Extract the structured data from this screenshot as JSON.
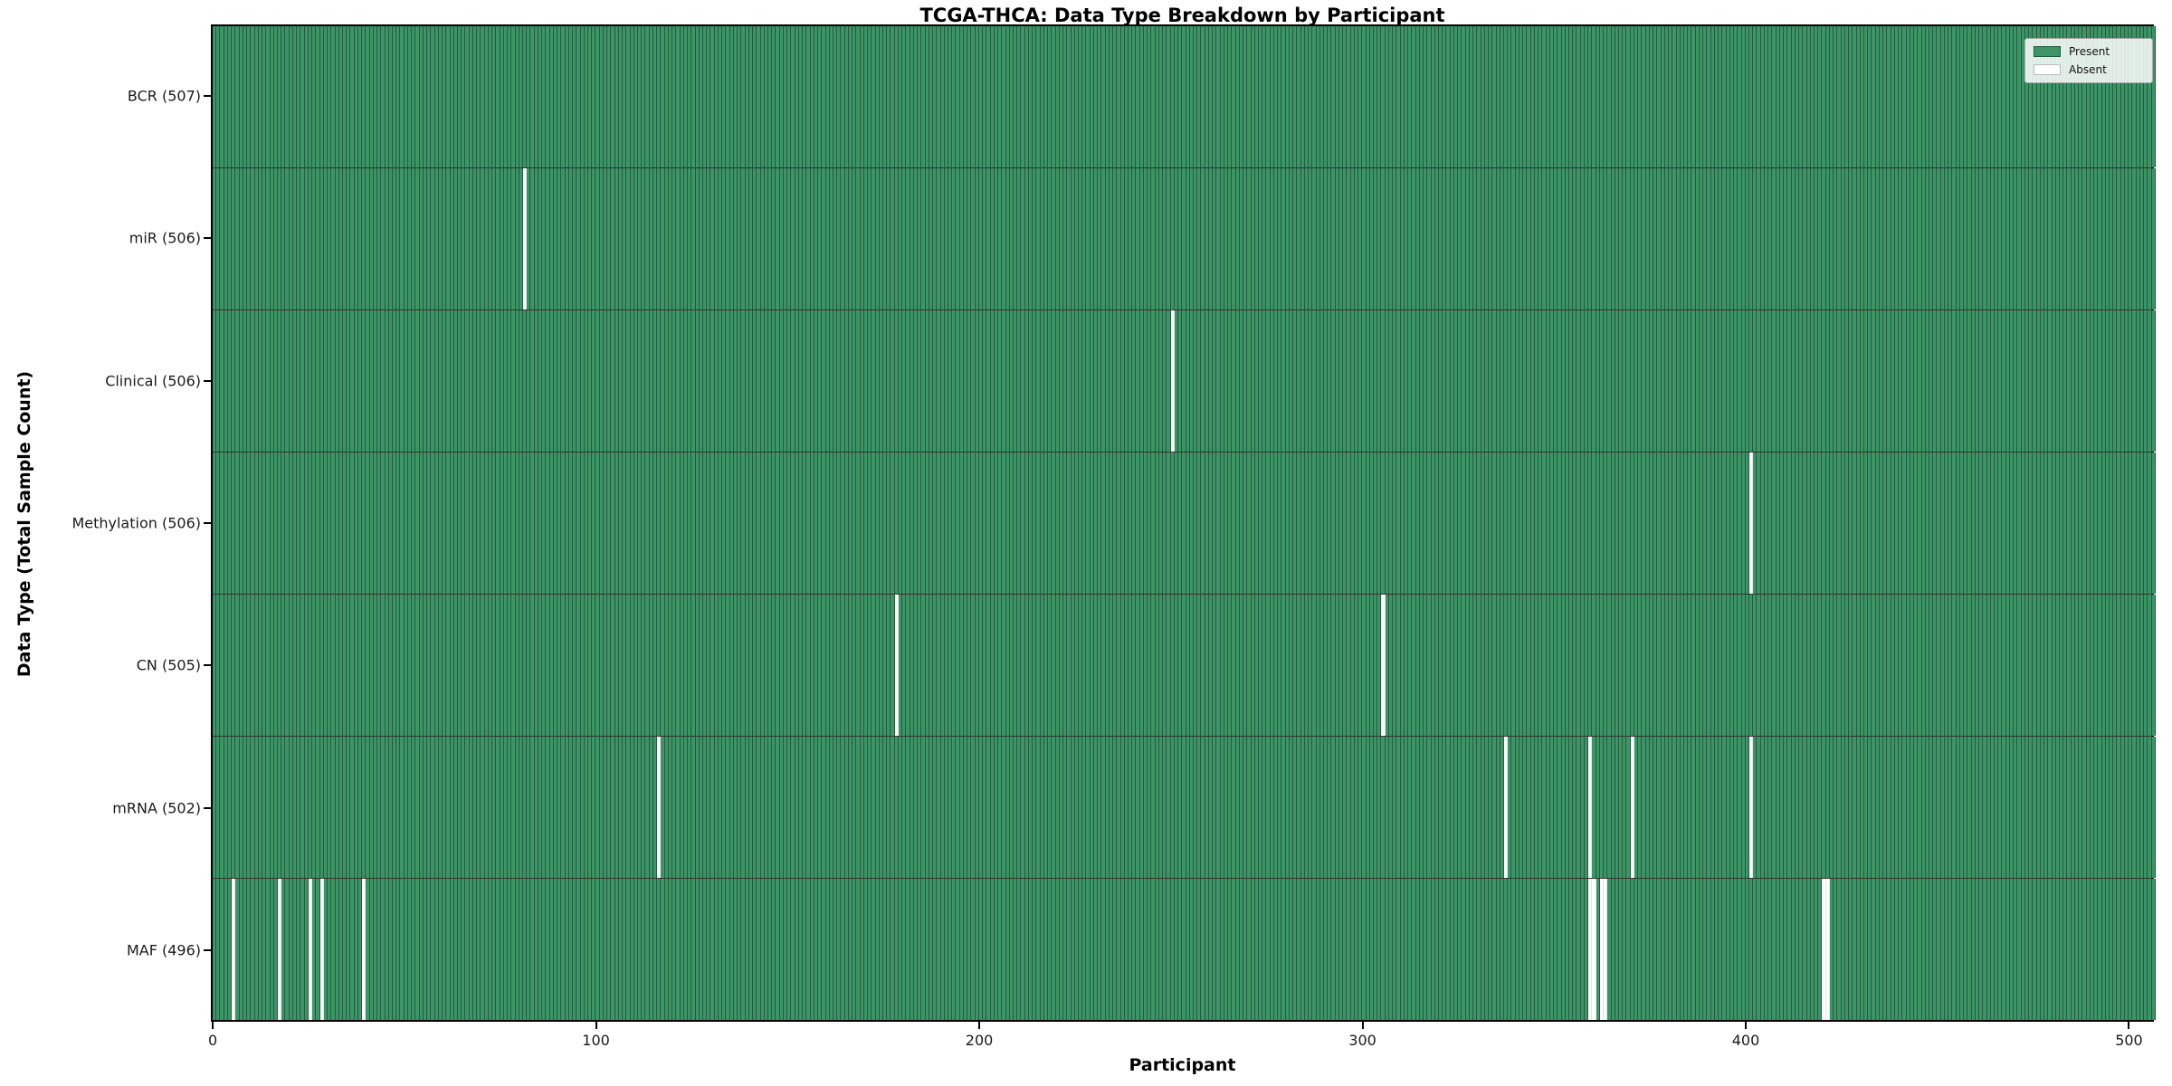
{
  "title": "TCGA-THCA: Data Type Breakdown by Participant",
  "axes": {
    "x_label": "Participant",
    "y_label": "Data Type (Total Sample Count)",
    "x_ticks": [
      0,
      100,
      200,
      300,
      400,
      500
    ]
  },
  "legend": {
    "items": [
      {
        "label": "Present",
        "key": "present"
      },
      {
        "label": "Absent",
        "key": "absent"
      }
    ]
  },
  "colors": {
    "present": "#3d9466",
    "absent": "#ffffff",
    "cell_edge": "rgba(5,38,20,0.5)",
    "row_separator": "rgba(0,0,0,0.8)"
  },
  "chart_data": {
    "type": "heatmap",
    "title": "TCGA-THCA: Data Type Breakdown by Participant",
    "xlabel": "Participant",
    "ylabel": "Data Type (Total Sample Count)",
    "legend": [
      "Present",
      "Absent"
    ],
    "legend_position": "upper right",
    "n_participants": 507,
    "x_ticks": [
      0,
      100,
      200,
      300,
      400,
      500
    ],
    "xlim": [
      0,
      507
    ],
    "value_encoding": {
      "present": 1,
      "absent": 0
    },
    "rows": [
      {
        "label": "BCR (507)",
        "data_type": "BCR",
        "present_count": 507,
        "missing_participants": []
      },
      {
        "label": "miR (506)",
        "data_type": "miR",
        "present_count": 506,
        "missing_participants": [
          81
        ]
      },
      {
        "label": "Clinical (506)",
        "data_type": "Clinical",
        "present_count": 506,
        "missing_participants": [
          250
        ]
      },
      {
        "label": "Methylation (506)",
        "data_type": "Methylation",
        "present_count": 506,
        "missing_participants": [
          401
        ]
      },
      {
        "label": "CN (505)",
        "data_type": "CN",
        "present_count": 505,
        "missing_participants": [
          178,
          305
        ]
      },
      {
        "label": "mRNA (502)",
        "data_type": "mRNA",
        "present_count": 502,
        "missing_participants": [
          116,
          337,
          359,
          370,
          401
        ]
      },
      {
        "label": "MAF (496)",
        "data_type": "MAF",
        "present_count": 496,
        "missing_participants": [
          5,
          17,
          25,
          28,
          39,
          359,
          360,
          362,
          363,
          420,
          421
        ]
      }
    ]
  }
}
